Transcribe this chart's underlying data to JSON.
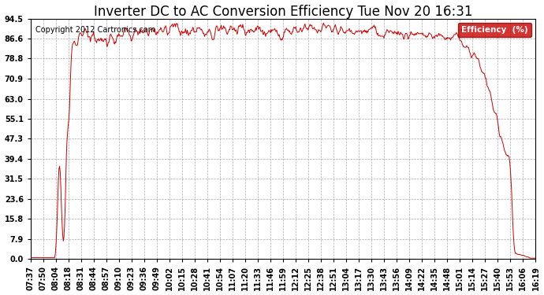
{
  "title": "Inverter DC to AC Conversion Efficiency Tue Nov 20 16:31",
  "copyright": "Copyright 2012 Cartronics.com",
  "legend_label": "Efficiency  (%)",
  "legend_bg": "#cc0000",
  "line_color": "#cc0000",
  "bg_color": "#ffffff",
  "grid_color": "#aaaaaa",
  "yticks": [
    0.0,
    7.9,
    15.8,
    23.6,
    31.5,
    39.4,
    47.3,
    55.1,
    63.0,
    70.9,
    78.8,
    86.6,
    94.5
  ],
  "xtick_labels": [
    "07:37",
    "07:50",
    "08:04",
    "08:18",
    "08:31",
    "08:44",
    "08:57",
    "09:10",
    "09:23",
    "09:36",
    "09:49",
    "10:02",
    "10:15",
    "10:28",
    "10:41",
    "10:54",
    "11:07",
    "11:20",
    "11:33",
    "11:46",
    "11:59",
    "12:12",
    "12:25",
    "12:38",
    "12:51",
    "13:04",
    "13:17",
    "13:30",
    "13:43",
    "13:56",
    "14:09",
    "14:22",
    "14:35",
    "14:48",
    "15:01",
    "15:14",
    "15:27",
    "15:40",
    "15:53",
    "16:06",
    "16:19"
  ],
  "ylim": [
    0.0,
    94.5
  ],
  "title_fontsize": 12,
  "copyright_fontsize": 7,
  "tick_fontsize": 7
}
